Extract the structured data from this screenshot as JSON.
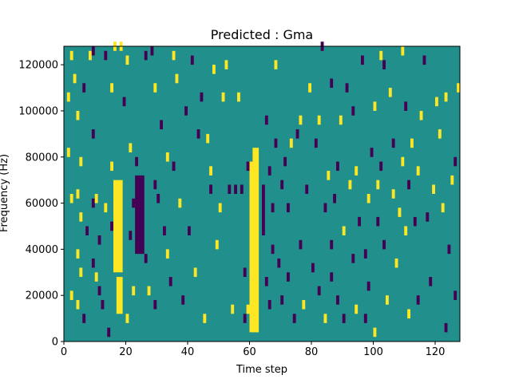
{
  "chart_data": {
    "type": "heatmap",
    "title": "Predicted : Gma",
    "xlabel": "Time step",
    "ylabel": "Frequency (Hz)",
    "xlim": [
      0,
      128
    ],
    "ylim": [
      0,
      128000
    ],
    "xticks": [
      0,
      20,
      40,
      60,
      80,
      100,
      120
    ],
    "yticks": [
      0,
      20000,
      40000,
      60000,
      80000,
      100000,
      120000
    ],
    "ytick_labels": [
      "0",
      "20000",
      "40000",
      "60000",
      "80000",
      "100000",
      "120000"
    ],
    "n_time_bins": 128,
    "n_freq_bins": 128,
    "value_range": [
      -1,
      1
    ],
    "colormap": {
      "-1": "#440154",
      "0": "#21908d",
      "1": "#fde725"
    },
    "background_value": 0,
    "bands": [
      {
        "t": [
          16,
          19
        ],
        "f": [
          30000,
          70000
        ],
        "value": 1
      },
      {
        "t": [
          17,
          19
        ],
        "f": [
          12000,
          28000
        ],
        "value": 1
      },
      {
        "t": [
          60,
          63
        ],
        "f": [
          4000,
          78000
        ],
        "value": 1
      },
      {
        "t": [
          61,
          63
        ],
        "f": [
          78000,
          84000
        ],
        "value": 1
      },
      {
        "t": [
          23,
          26
        ],
        "f": [
          38000,
          72000
        ],
        "value": -1
      },
      {
        "t": [
          64,
          65
        ],
        "f": [
          46000,
          68000
        ],
        "value": -1
      }
    ],
    "cells": [
      [
        1,
        104000,
        1
      ],
      [
        1,
        80000,
        1
      ],
      [
        2,
        122000,
        1
      ],
      [
        2,
        60000,
        1
      ],
      [
        2,
        18000,
        1
      ],
      [
        3,
        112000,
        1
      ],
      [
        4,
        96000,
        1
      ],
      [
        4,
        62000,
        1
      ],
      [
        4,
        36000,
        1
      ],
      [
        4,
        14000,
        1
      ],
      [
        5,
        76000,
        1
      ],
      [
        5,
        52000,
        1
      ],
      [
        5,
        28000,
        1
      ],
      [
        6,
        8000,
        -1
      ],
      [
        6,
        108000,
        -1
      ],
      [
        7,
        46000,
        -1
      ],
      [
        8,
        122000,
        1
      ],
      [
        9,
        124000,
        -1
      ],
      [
        9,
        88000,
        -1
      ],
      [
        9,
        58000,
        -1
      ],
      [
        9,
        32000,
        -1
      ],
      [
        10,
        60000,
        1
      ],
      [
        10,
        26000,
        1
      ],
      [
        11,
        42000,
        -1
      ],
      [
        11,
        20000,
        -1
      ],
      [
        12,
        14000,
        -1
      ],
      [
        13,
        122000,
        -1
      ],
      [
        13,
        56000,
        1
      ],
      [
        14,
        2000,
        -1
      ],
      [
        15,
        108000,
        1
      ],
      [
        15,
        74000,
        1
      ],
      [
        15,
        48000,
        -1
      ],
      [
        16,
        126000,
        1
      ],
      [
        18,
        126000,
        1
      ],
      [
        19,
        102000,
        -1
      ],
      [
        20,
        120000,
        1
      ],
      [
        20,
        8000,
        1
      ],
      [
        21,
        82000,
        1
      ],
      [
        21,
        44000,
        -1
      ],
      [
        22,
        58000,
        -1
      ],
      [
        22,
        20000,
        1
      ],
      [
        23,
        76000,
        -1
      ],
      [
        26,
        122000,
        -1
      ],
      [
        26,
        34000,
        -1
      ],
      [
        27,
        20000,
        1
      ],
      [
        28,
        124000,
        -1
      ],
      [
        29,
        108000,
        1
      ],
      [
        29,
        66000,
        -1
      ],
      [
        29,
        14000,
        -1
      ],
      [
        30,
        60000,
        -1
      ],
      [
        31,
        92000,
        -1
      ],
      [
        32,
        46000,
        -1
      ],
      [
        33,
        78000,
        1
      ],
      [
        33,
        36000,
        1
      ],
      [
        34,
        24000,
        -1
      ],
      [
        35,
        122000,
        1
      ],
      [
        35,
        74000,
        -1
      ],
      [
        36,
        112000,
        1
      ],
      [
        37,
        58000,
        1
      ],
      [
        38,
        16000,
        -1
      ],
      [
        39,
        98000,
        -1
      ],
      [
        40,
        46000,
        -1
      ],
      [
        41,
        120000,
        -1
      ],
      [
        42,
        28000,
        1
      ],
      [
        43,
        88000,
        -1
      ],
      [
        44,
        104000,
        -1
      ],
      [
        45,
        8000,
        1
      ],
      [
        46,
        86000,
        1
      ],
      [
        47,
        72000,
        1
      ],
      [
        47,
        64000,
        -1
      ],
      [
        48,
        116000,
        1
      ],
      [
        49,
        40000,
        1
      ],
      [
        50,
        56000,
        1
      ],
      [
        51,
        104000,
        1
      ],
      [
        52,
        118000,
        1
      ],
      [
        53,
        64000,
        -1
      ],
      [
        54,
        12000,
        1
      ],
      [
        55,
        64000,
        -1
      ],
      [
        56,
        104000,
        1
      ],
      [
        57,
        64000,
        -1
      ],
      [
        58,
        28000,
        -1
      ],
      [
        58,
        8000,
        -1
      ],
      [
        59,
        74000,
        -1
      ],
      [
        59,
        12000,
        1
      ],
      [
        65,
        94000,
        -1
      ],
      [
        65,
        24000,
        -1
      ],
      [
        66,
        72000,
        -1
      ],
      [
        66,
        14000,
        -1
      ],
      [
        67,
        56000,
        -1
      ],
      [
        67,
        38000,
        -1
      ],
      [
        68,
        118000,
        1
      ],
      [
        68,
        84000,
        -1
      ],
      [
        69,
        32000,
        -1
      ],
      [
        70,
        66000,
        -1
      ],
      [
        70,
        16000,
        -1
      ],
      [
        71,
        76000,
        -1
      ],
      [
        72,
        56000,
        -1
      ],
      [
        72,
        26000,
        -1
      ],
      [
        73,
        84000,
        1
      ],
      [
        74,
        8000,
        -1
      ],
      [
        75,
        88000,
        -1
      ],
      [
        76,
        94000,
        1
      ],
      [
        76,
        40000,
        -1
      ],
      [
        77,
        14000,
        1
      ],
      [
        78,
        64000,
        -1
      ],
      [
        79,
        108000,
        1
      ],
      [
        80,
        30000,
        -1
      ],
      [
        81,
        84000,
        -1
      ],
      [
        82,
        94000,
        1
      ],
      [
        82,
        20000,
        -1
      ],
      [
        83,
        126000,
        -1
      ],
      [
        84,
        56000,
        -1
      ],
      [
        84,
        8000,
        1
      ],
      [
        85,
        70000,
        1
      ],
      [
        86,
        40000,
        -1
      ],
      [
        86,
        110000,
        -1
      ],
      [
        86,
        26000,
        -1
      ],
      [
        87,
        60000,
        -1
      ],
      [
        88,
        74000,
        -1
      ],
      [
        88,
        16000,
        -1
      ],
      [
        89,
        94000,
        1
      ],
      [
        90,
        46000,
        1
      ],
      [
        90,
        8000,
        -1
      ],
      [
        91,
        108000,
        -1
      ],
      [
        92,
        66000,
        1
      ],
      [
        93,
        98000,
        -1
      ],
      [
        93,
        34000,
        -1
      ],
      [
        94,
        72000,
        1
      ],
      [
        94,
        12000,
        1
      ],
      [
        95,
        50000,
        -1
      ],
      [
        96,
        120000,
        -1
      ],
      [
        97,
        36000,
        -1
      ],
      [
        97,
        8000,
        -1
      ],
      [
        98,
        60000,
        1
      ],
      [
        98,
        22000,
        -1
      ],
      [
        99,
        80000,
        -1
      ],
      [
        100,
        100000,
        1
      ],
      [
        100,
        2000,
        1
      ],
      [
        101,
        66000,
        1
      ],
      [
        101,
        50000,
        -1
      ],
      [
        102,
        122000,
        1
      ],
      [
        102,
        74000,
        -1
      ],
      [
        103,
        40000,
        -1
      ],
      [
        103,
        118000,
        -1
      ],
      [
        104,
        16000,
        1
      ],
      [
        105,
        106000,
        1
      ],
      [
        106,
        62000,
        1
      ],
      [
        106,
        84000,
        -1
      ],
      [
        107,
        32000,
        1
      ],
      [
        108,
        54000,
        1
      ],
      [
        109,
        124000,
        1
      ],
      [
        109,
        76000,
        1
      ],
      [
        110,
        100000,
        -1
      ],
      [
        110,
        46000,
        1
      ],
      [
        111,
        66000,
        -1
      ],
      [
        111,
        10000,
        1
      ],
      [
        112,
        84000,
        1
      ],
      [
        113,
        50000,
        -1
      ],
      [
        114,
        72000,
        1
      ],
      [
        114,
        16000,
        -1
      ],
      [
        115,
        96000,
        1
      ],
      [
        116,
        120000,
        -1
      ],
      [
        117,
        52000,
        -1
      ],
      [
        118,
        24000,
        -1
      ],
      [
        119,
        64000,
        1
      ],
      [
        120,
        102000,
        1
      ],
      [
        121,
        88000,
        1
      ],
      [
        122,
        56000,
        1
      ],
      [
        123,
        104000,
        1
      ],
      [
        123,
        4000,
        -1
      ],
      [
        124,
        38000,
        -1
      ],
      [
        125,
        68000,
        1
      ],
      [
        126,
        76000,
        -1
      ],
      [
        126,
        18000,
        -1
      ],
      [
        127,
        108000,
        1
      ]
    ]
  }
}
